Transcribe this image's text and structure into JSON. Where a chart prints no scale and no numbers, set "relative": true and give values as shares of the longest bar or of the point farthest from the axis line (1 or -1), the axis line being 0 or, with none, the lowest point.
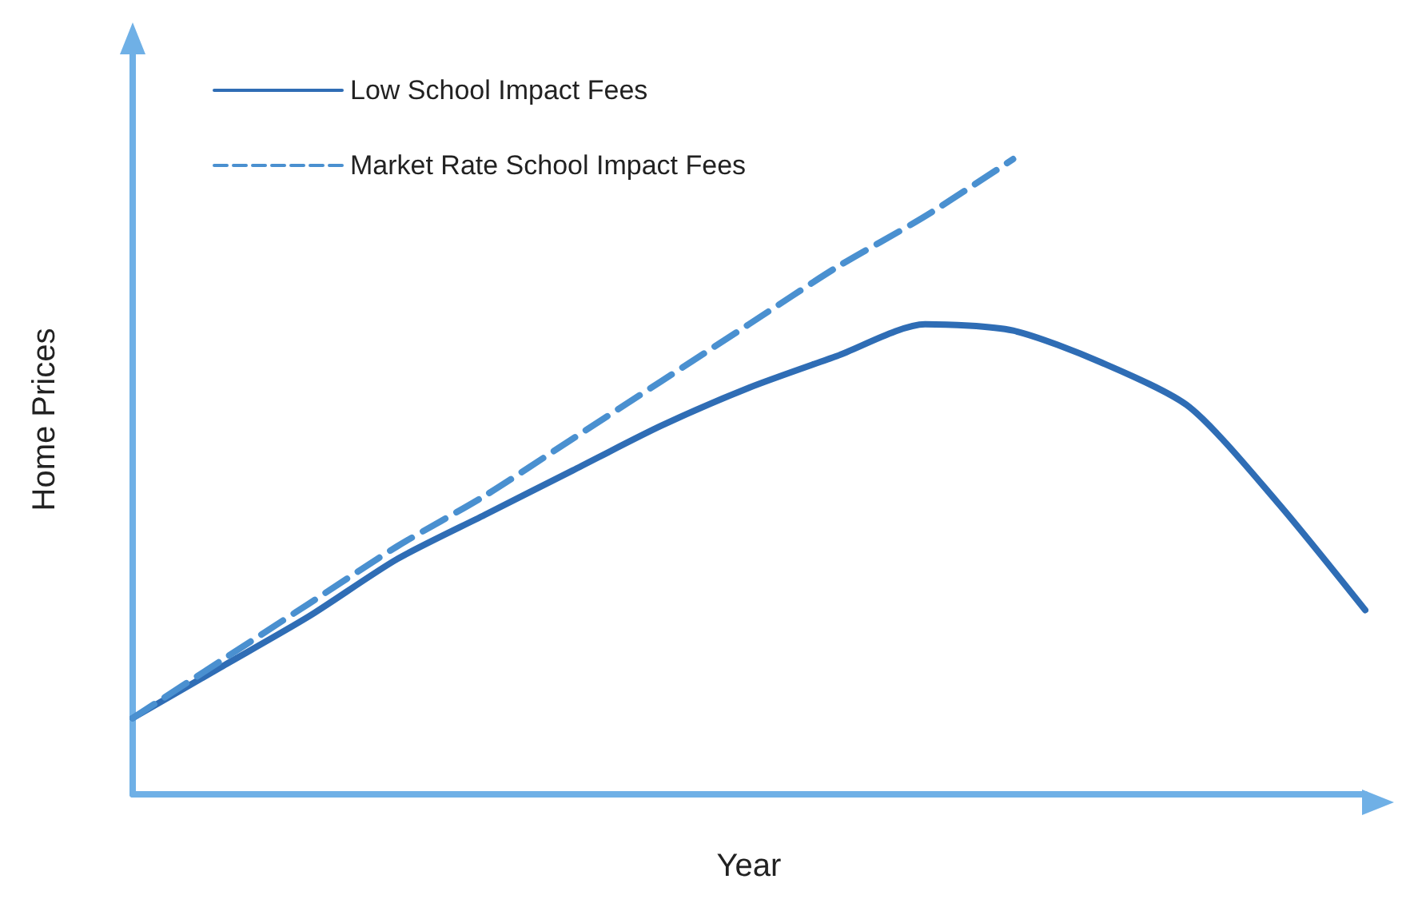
{
  "chart_data": {
    "type": "line",
    "relative": true,
    "xlabel": "Year",
    "ylabel": "Home Prices",
    "categories": [
      null,
      null,
      null,
      null,
      null,
      null,
      null,
      null,
      null,
      null,
      null,
      null,
      null,
      null,
      null
    ],
    "series": [
      {
        "name": "Low School Impact Fees",
        "color": "#2f6db5",
        "line_style": "solid",
        "values": [
          0.12,
          0.2,
          0.28,
          0.37,
          0.44,
          0.51,
          0.58,
          0.64,
          0.69,
          0.74,
          0.73,
          0.68,
          0.61,
          0.46,
          0.29
        ]
      },
      {
        "name": "Market Rate School Impact Fees",
        "color": "#4a90d0",
        "line_style": "dashed",
        "values": [
          0.12,
          0.21,
          0.3,
          0.39,
          0.47,
          0.56,
          0.65,
          0.74,
          0.83,
          0.91,
          1,
          null,
          null,
          null,
          null
        ]
      }
    ],
    "grid": false,
    "legend": "top left",
    "marker": "none"
  }
}
